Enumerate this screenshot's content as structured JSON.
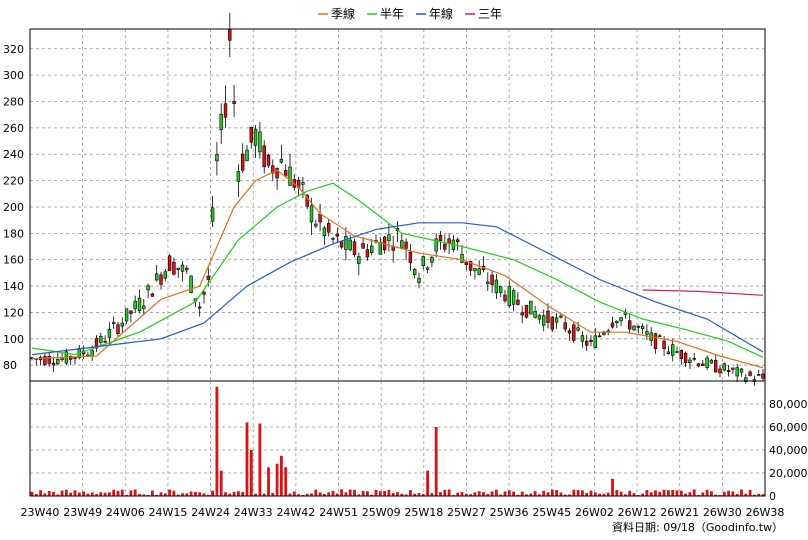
{
  "chart_data": {
    "type": "candlestick",
    "legend": [
      {
        "label": "季線",
        "color": "#e07020"
      },
      {
        "label": "半年",
        "color": "#22cc22"
      },
      {
        "label": "年線",
        "color": "#2060c0"
      },
      {
        "label": "三年",
        "color": "#cc2266"
      }
    ],
    "x_ticks": [
      "23W40",
      "23W49",
      "24W06",
      "24W15",
      "24W24",
      "24W33",
      "24W42",
      "24W51",
      "25W09",
      "25W18",
      "25W27",
      "25W36",
      "25W45",
      "26W02",
      "26W12",
      "26W21",
      "26W30",
      "26W38"
    ],
    "price_axis": {
      "ticks": [
        "320",
        "300",
        "280",
        "260",
        "240",
        "220",
        "200",
        "180",
        "160",
        "140",
        "120",
        "100",
        "80"
      ],
      "ylim": [
        68,
        335
      ],
      "grid": true
    },
    "volume_axis": {
      "ticks": [
        "80,000",
        "60,000",
        "40,000",
        "20,000",
        "0"
      ],
      "ylim": [
        0,
        100000
      ],
      "grid": true
    },
    "footer": "資料日期: 09/18（Goodinfo.tw）",
    "colors": {
      "up": "#22cc22",
      "down": "#dd1111",
      "volume": "#dd1111",
      "grid": "#999999"
    },
    "price_anchors": [
      [
        0,
        85
      ],
      [
        8,
        85
      ],
      [
        14,
        92
      ],
      [
        20,
        110
      ],
      [
        26,
        130
      ],
      [
        32,
        158
      ],
      [
        36,
        150
      ],
      [
        39,
        125
      ],
      [
        41,
        145
      ],
      [
        43,
        235
      ],
      [
        45,
        280
      ],
      [
        46,
        330
      ],
      [
        48,
        230
      ],
      [
        52,
        255
      ],
      [
        55,
        230
      ],
      [
        58,
        235
      ],
      [
        62,
        215
      ],
      [
        66,
        190
      ],
      [
        70,
        175
      ],
      [
        76,
        165
      ],
      [
        82,
        175
      ],
      [
        86,
        178
      ],
      [
        90,
        150
      ],
      [
        94,
        170
      ],
      [
        98,
        175
      ],
      [
        102,
        155
      ],
      [
        108,
        140
      ],
      [
        114,
        125
      ],
      [
        120,
        115
      ],
      [
        124,
        110
      ],
      [
        130,
        95
      ],
      [
        136,
        118
      ],
      [
        140,
        110
      ],
      [
        144,
        100
      ],
      [
        150,
        90
      ],
      [
        156,
        82
      ],
      [
        166,
        72
      ],
      [
        170,
        70
      ]
    ],
    "volume_spikes": [
      [
        43,
        95000
      ],
      [
        44,
        22000
      ],
      [
        50,
        64000
      ],
      [
        51,
        40000
      ],
      [
        53,
        63000
      ],
      [
        55,
        25000
      ],
      [
        57,
        28000
      ],
      [
        58,
        35000
      ],
      [
        59,
        25000
      ],
      [
        94,
        60000
      ],
      [
        92,
        22000
      ],
      [
        135,
        15000
      ]
    ],
    "series": [
      {
        "name": "季線",
        "points": [
          [
            0,
            85
          ],
          [
            15,
            87
          ],
          [
            30,
            130
          ],
          [
            39,
            140
          ],
          [
            43,
            170
          ],
          [
            47,
            200
          ],
          [
            52,
            220
          ],
          [
            57,
            228
          ],
          [
            62,
            215
          ],
          [
            67,
            195
          ],
          [
            75,
            178
          ],
          [
            90,
            165
          ],
          [
            100,
            160
          ],
          [
            110,
            148
          ],
          [
            120,
            125
          ],
          [
            130,
            105
          ],
          [
            138,
            105
          ],
          [
            150,
            98
          ],
          [
            160,
            87
          ],
          [
            170,
            78
          ]
        ]
      },
      {
        "name": "半年",
        "points": [
          [
            0,
            93
          ],
          [
            10,
            88
          ],
          [
            25,
            105
          ],
          [
            38,
            128
          ],
          [
            48,
            175
          ],
          [
            57,
            200
          ],
          [
            64,
            212
          ],
          [
            70,
            218
          ],
          [
            76,
            205
          ],
          [
            86,
            180
          ],
          [
            100,
            170
          ],
          [
            112,
            160
          ],
          [
            122,
            145
          ],
          [
            132,
            128
          ],
          [
            142,
            115
          ],
          [
            152,
            107
          ],
          [
            162,
            98
          ],
          [
            170,
            86
          ]
        ]
      },
      {
        "name": "年線",
        "points": [
          [
            0,
            88
          ],
          [
            30,
            100
          ],
          [
            40,
            112
          ],
          [
            50,
            140
          ],
          [
            60,
            158
          ],
          [
            70,
            172
          ],
          [
            80,
            183
          ],
          [
            90,
            188
          ],
          [
            100,
            188
          ],
          [
            108,
            185
          ],
          [
            120,
            165
          ],
          [
            132,
            145
          ],
          [
            145,
            128
          ],
          [
            157,
            115
          ],
          [
            170,
            90
          ]
        ]
      },
      {
        "name": "三年",
        "points": [
          [
            142,
            137
          ],
          [
            155,
            136
          ],
          [
            170,
            133
          ]
        ]
      }
    ]
  }
}
